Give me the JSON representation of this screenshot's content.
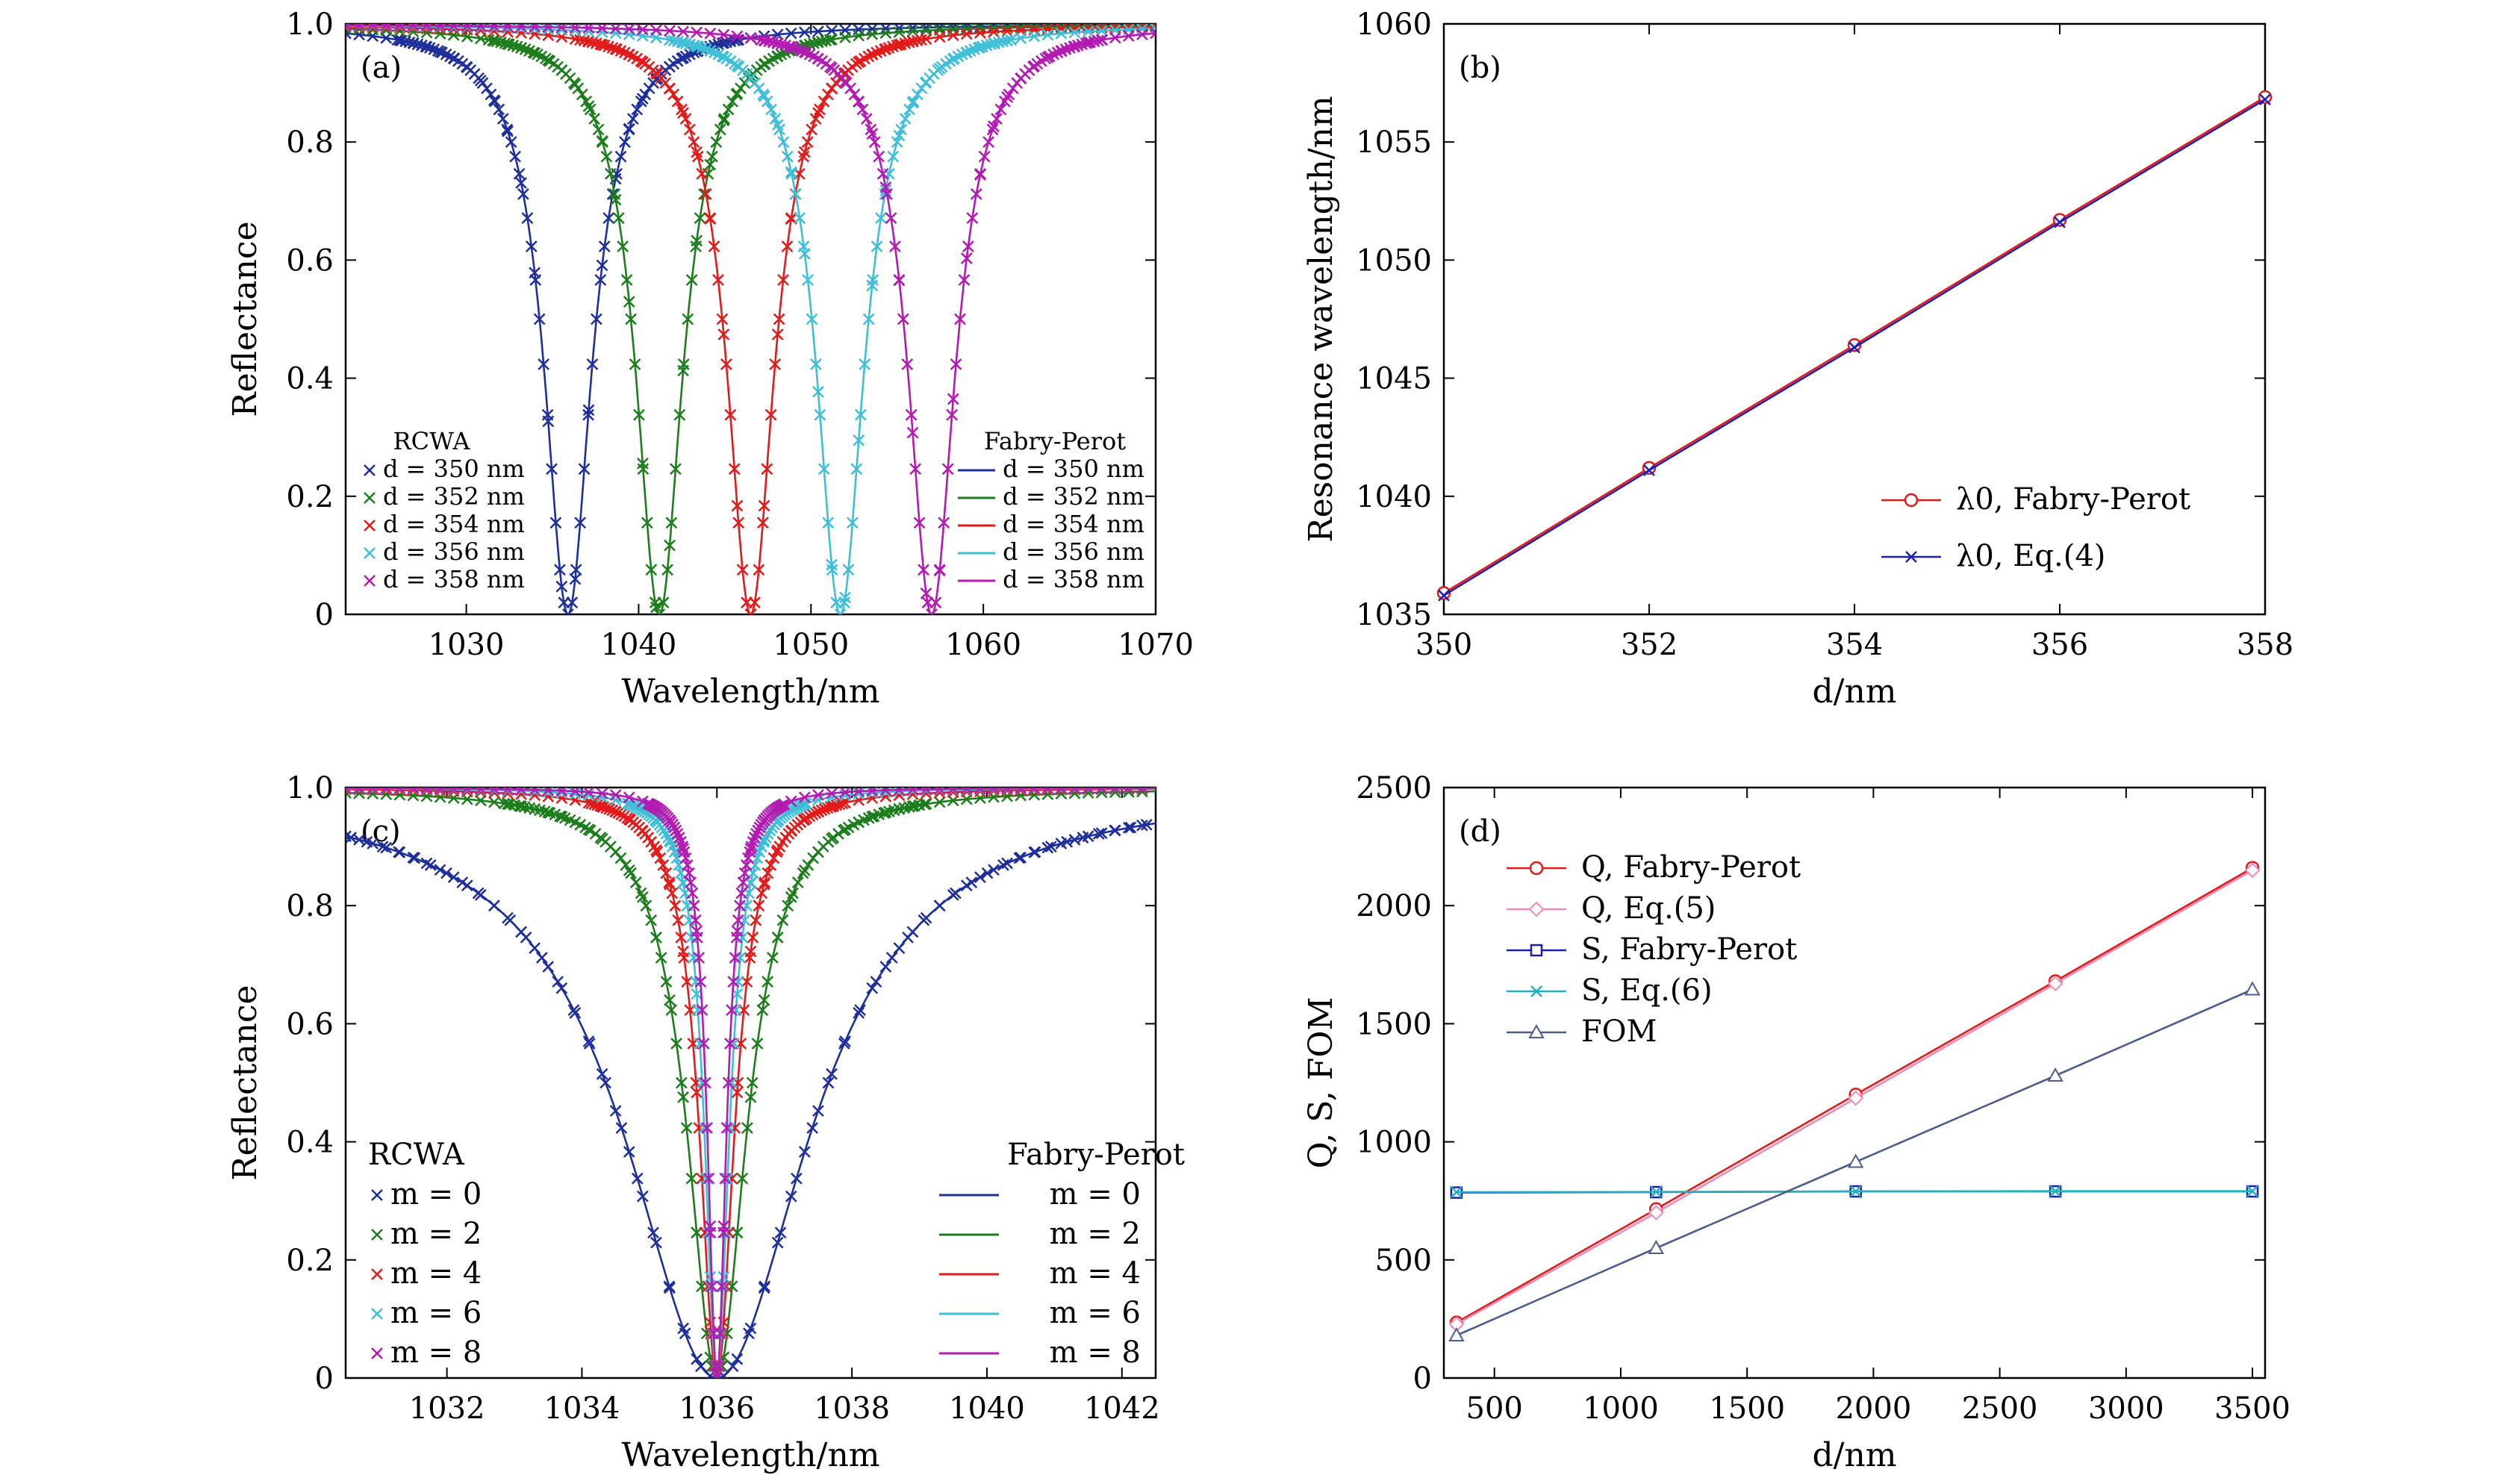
{
  "figure": "Four-panel reflectance figure",
  "colors": {
    "c350": "#1f2f9a",
    "c352": "#1d7d1d",
    "c354": "#e21a1a",
    "c356": "#3fbfd7",
    "c358": "#b21ab2",
    "red": "#e21a1a",
    "blue": "#2020b8",
    "pink": "#f08ab8",
    "navy": "#1e1ea8",
    "teal": "#1fb2bf",
    "slate": "#4d5d8a"
  },
  "chart_data": [
    {
      "panel": "a",
      "tag": "(a)",
      "type": "line",
      "xlabel": "Wavelength/nm",
      "ylabel": "Reflectance",
      "xlim": [
        1023,
        1070
      ],
      "ylim": [
        0,
        1
      ],
      "xticks": [
        1030,
        1040,
        1050,
        1060,
        1070
      ],
      "yticks": [
        0,
        0.2,
        0.4,
        0.6,
        0.8,
        1.0
      ],
      "ytick_labels": [
        "0",
        "0.2",
        "0.4",
        "0.6",
        "0.8",
        "1.0"
      ],
      "legend_rcwa_title": "RCWA",
      "legend_fp_title": "Fabry-Perot",
      "series": [
        {
          "label": "d = 350 nm",
          "color": "c350",
          "center": 1035.9,
          "fwhm": 3.3
        },
        {
          "label": "d = 352 nm",
          "color": "c352",
          "center": 1041.2,
          "fwhm": 3.3
        },
        {
          "label": "d = 354 nm",
          "color": "c354",
          "center": 1046.5,
          "fwhm": 3.3
        },
        {
          "label": "d = 356 nm",
          "color": "c356",
          "center": 1051.7,
          "fwhm": 3.3
        },
        {
          "label": "d = 358 nm",
          "color": "c358",
          "center": 1057.0,
          "fwhm": 3.3
        }
      ]
    },
    {
      "panel": "b",
      "tag": "(b)",
      "type": "line",
      "xlabel": "d/nm",
      "ylabel": "Resonance wavelength/nm",
      "xlim": [
        350,
        358
      ],
      "ylim": [
        1035,
        1060
      ],
      "xticks": [
        350,
        352,
        354,
        356,
        358
      ],
      "yticks": [
        1035,
        1040,
        1045,
        1050,
        1055,
        1060
      ],
      "x": [
        350,
        352,
        354,
        356,
        358
      ],
      "series": [
        {
          "name": "λ0, Fabry-Perot",
          "color": "red",
          "marker": "circle",
          "values": [
            1035.9,
            1041.2,
            1046.4,
            1051.7,
            1056.9
          ]
        },
        {
          "name": "λ0, Eq.(4)",
          "color": "blue",
          "marker": "x",
          "values": [
            1035.8,
            1041.1,
            1046.3,
            1051.6,
            1056.8
          ]
        }
      ]
    },
    {
      "panel": "c",
      "tag": "(c)",
      "type": "line",
      "xlabel": "Wavelength/nm",
      "ylabel": "Reflectance",
      "xlim": [
        1030.5,
        1042.5
      ],
      "ylim": [
        0,
        1
      ],
      "xticks": [
        1032,
        1034,
        1036,
        1038,
        1040,
        1042
      ],
      "yticks": [
        0,
        0.2,
        0.4,
        0.6,
        0.8,
        1.0
      ],
      "ytick_labels": [
        "0",
        "0.2",
        "0.4",
        "0.6",
        "0.8",
        "1.0"
      ],
      "legend_rcwa_title": "RCWA",
      "legend_fp_title": "Fabry-Perot",
      "series": [
        {
          "label": "m = 0",
          "color": "c350",
          "center": 1036.0,
          "fwhm": 3.3
        },
        {
          "label": "m = 2",
          "color": "c352",
          "center": 1036.0,
          "fwhm": 1.05
        },
        {
          "label": "m = 4",
          "color": "c354",
          "center": 1036.0,
          "fwhm": 0.62
        },
        {
          "label": "m = 6",
          "color": "c356",
          "center": 1036.0,
          "fwhm": 0.44
        },
        {
          "label": "m = 8",
          "color": "c358",
          "center": 1036.0,
          "fwhm": 0.34
        }
      ]
    },
    {
      "panel": "d",
      "tag": "(d)",
      "type": "line",
      "xlabel": "d/nm",
      "ylabel": "Q, S, FOM",
      "xlim": [
        300,
        3550
      ],
      "ylim": [
        0,
        2500
      ],
      "xticks": [
        500,
        1000,
        1500,
        2000,
        2500,
        3000,
        3500
      ],
      "yticks": [
        0,
        500,
        1000,
        1500,
        2000,
        2500
      ],
      "x": [
        350,
        1140,
        1930,
        2720,
        3500
      ],
      "series": [
        {
          "name": "Q, Fabry-Perot",
          "color": "red",
          "marker": "circle",
          "values": [
            235,
            715,
            1200,
            1680,
            2160
          ]
        },
        {
          "name": "Q, Eq.(5)",
          "color": "pink",
          "marker": "diamond",
          "values": [
            228,
            700,
            1185,
            1670,
            2150
          ]
        },
        {
          "name": "S, Fabry-Perot",
          "color": "navy",
          "marker": "square",
          "values": [
            785,
            787,
            790,
            790,
            790
          ]
        },
        {
          "name": "S, Eq.(6)",
          "color": "teal",
          "marker": "x",
          "values": [
            787,
            788,
            790,
            791,
            791
          ]
        },
        {
          "name": "FOM",
          "color": "slate",
          "marker": "triangle",
          "values": [
            180,
            550,
            915,
            1280,
            1645
          ]
        }
      ]
    }
  ]
}
